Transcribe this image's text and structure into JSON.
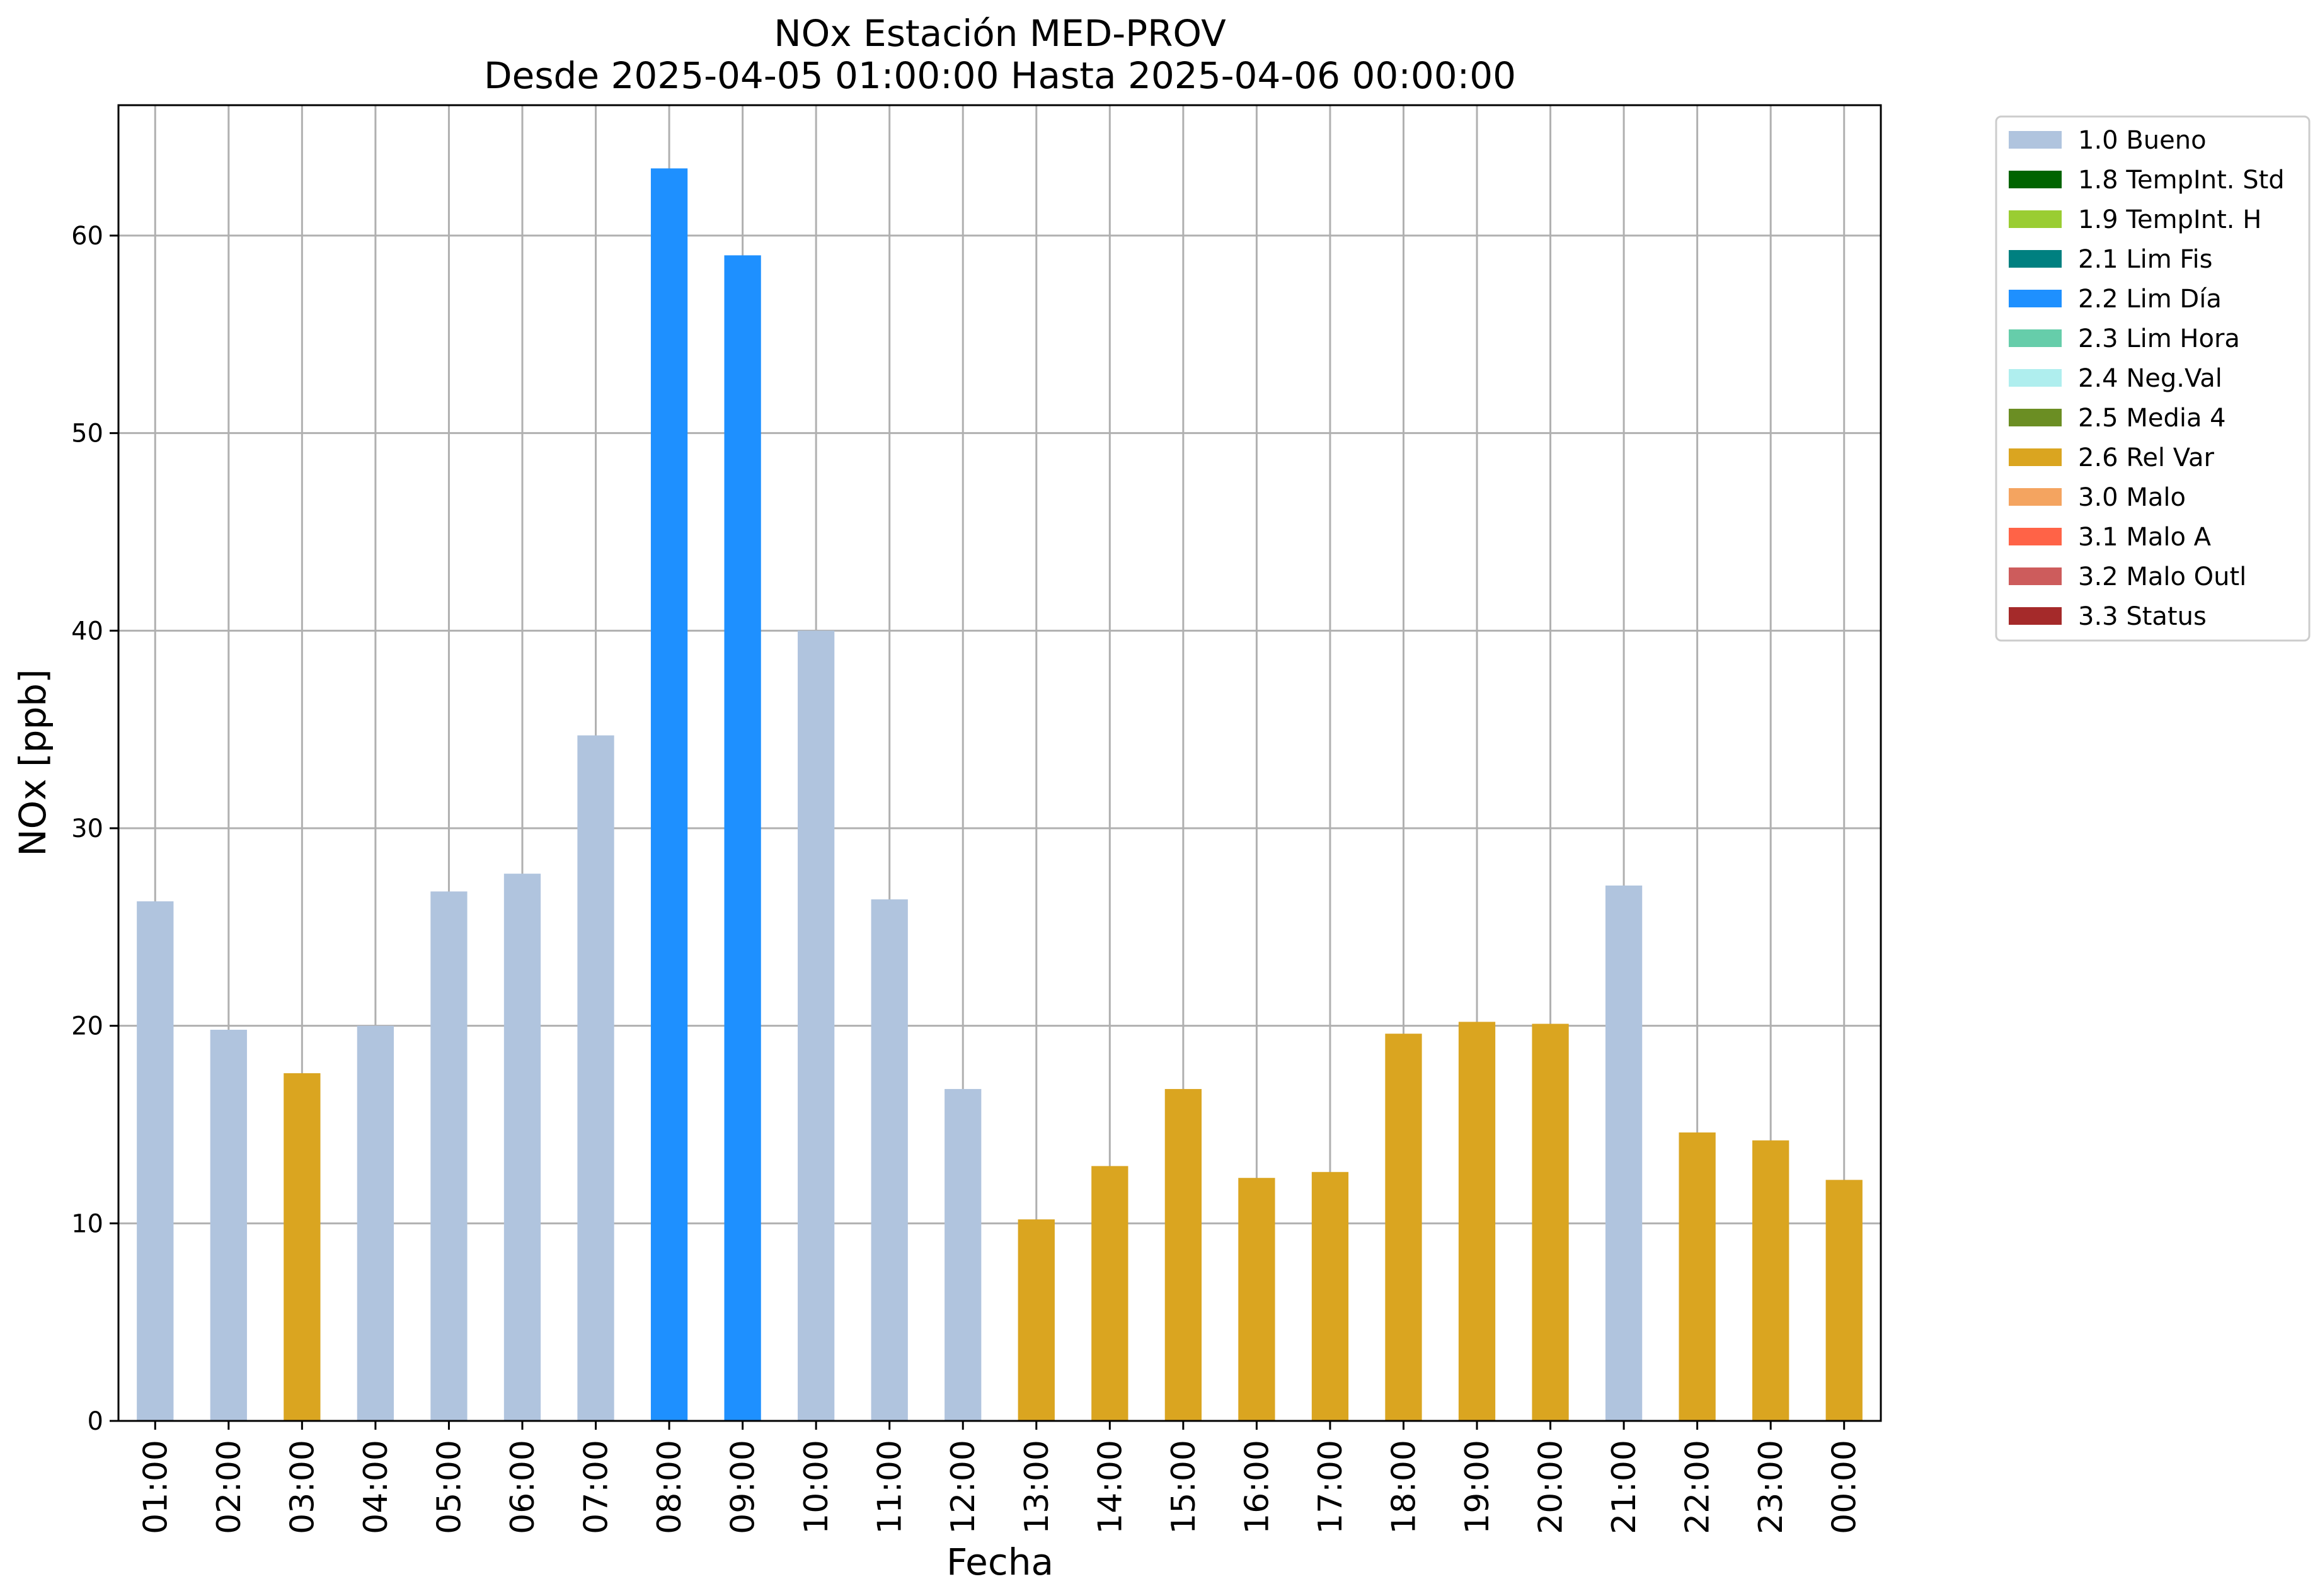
{
  "chart_data": {
    "type": "bar",
    "title": "NOx Estación MED-PROV",
    "subtitle": "Desde 2025-04-05 01:00:00 Hasta 2025-04-06 00:00:00",
    "xlabel": "Fecha",
    "ylabel": "NOx [ppb]",
    "ylim": [
      0,
      66.6
    ],
    "yticks": [
      0,
      10,
      20,
      30,
      40,
      50,
      60
    ],
    "grid": true,
    "legend_position": "outside top-right",
    "categories": [
      "01:00",
      "02:00",
      "03:00",
      "04:00",
      "05:00",
      "06:00",
      "07:00",
      "08:00",
      "09:00",
      "10:00",
      "11:00",
      "12:00",
      "13:00",
      "14:00",
      "15:00",
      "16:00",
      "17:00",
      "18:00",
      "19:00",
      "20:00",
      "21:00",
      "22:00",
      "23:00",
      "00:00"
    ],
    "values": [
      26.3,
      19.8,
      17.6,
      20.0,
      26.8,
      27.7,
      34.7,
      63.4,
      59.0,
      40.0,
      26.4,
      16.8,
      10.2,
      12.9,
      16.8,
      12.3,
      12.6,
      19.6,
      20.2,
      20.1,
      27.1,
      14.6,
      14.2,
      12.2
    ],
    "flags": [
      "1.0 Bueno",
      "1.0 Bueno",
      "2.6 Rel Var",
      "1.0 Bueno",
      "1.0 Bueno",
      "1.0 Bueno",
      "1.0 Bueno",
      "2.2 Lim Día",
      "2.2 Lim Día",
      "1.0 Bueno",
      "1.0 Bueno",
      "1.0 Bueno",
      "2.6 Rel Var",
      "2.6 Rel Var",
      "2.6 Rel Var",
      "2.6 Rel Var",
      "2.6 Rel Var",
      "2.6 Rel Var",
      "2.6 Rel Var",
      "2.6 Rel Var",
      "1.0 Bueno",
      "2.6 Rel Var",
      "2.6 Rel Var",
      "2.6 Rel Var"
    ],
    "legend": [
      {
        "label": "1.0 Bueno",
        "color": "#b0c4de"
      },
      {
        "label": "1.8 TempInt. Std",
        "color": "#006400"
      },
      {
        "label": "1.9 TempInt. H",
        "color": "#9acd32"
      },
      {
        "label": "2.1 Lim Fis",
        "color": "#008080"
      },
      {
        "label": "2.2 Lim Día",
        "color": "#1e90ff"
      },
      {
        "label": "2.3 Lim Hora",
        "color": "#66cdaa"
      },
      {
        "label": "2.4 Neg.Val",
        "color": "#afeeee"
      },
      {
        "label": "2.5 Media 4",
        "color": "#6b8e23"
      },
      {
        "label": "2.6 Rel Var",
        "color": "#daa520"
      },
      {
        "label": "3.0 Malo",
        "color": "#f4a460"
      },
      {
        "label": "3.1 Malo A",
        "color": "#ff6347"
      },
      {
        "label": "3.2 Malo Outl",
        "color": "#cd5c5c"
      },
      {
        "label": "3.3 Status",
        "color": "#a52a2a"
      }
    ]
  }
}
